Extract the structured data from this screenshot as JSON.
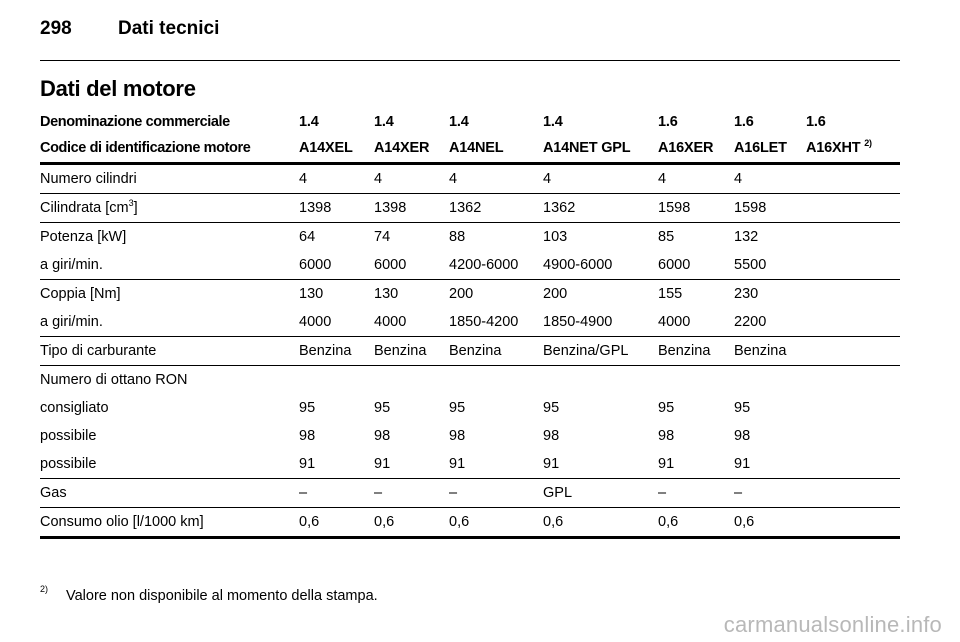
{
  "page": {
    "number": "298",
    "running_title": "Dati tecnici"
  },
  "section_title": "Dati del motore",
  "table": {
    "header_rows": [
      [
        "Denominazione commerciale",
        "1.4",
        "1.4",
        "1.4",
        "1.4",
        "1.6",
        "1.6",
        "1.6"
      ],
      [
        "Codice di identificazione motore",
        "A14XEL",
        "A14XER",
        "A14NEL",
        "A14NET GPL",
        "A16XER",
        "A16LET",
        "A16XHT"
      ]
    ],
    "header_footnote_ref": "2)",
    "rows": [
      {
        "label": "Numero cilindri",
        "values": [
          "4",
          "4",
          "4",
          "4",
          "4",
          "4",
          ""
        ]
      },
      {
        "label": "Cilindrata [cm",
        "label_sup": "3",
        "label_suffix": "]",
        "values": [
          "1398",
          "1398",
          "1362",
          "1362",
          "1598",
          "1598",
          ""
        ]
      },
      {
        "label": "Potenza [kW]",
        "values": [
          "64",
          "74",
          "88",
          "103",
          "85",
          "132",
          ""
        ]
      },
      {
        "label": "a giri/min.",
        "values": [
          "6000",
          "6000",
          "4200-6000",
          "4900-6000",
          "6000",
          "5500",
          ""
        ]
      },
      {
        "label": "Coppia [Nm]",
        "values": [
          "130",
          "130",
          "200",
          "200",
          "155",
          "230",
          ""
        ]
      },
      {
        "label": "a giri/min.",
        "values": [
          "4000",
          "4000",
          "1850-4200",
          "1850-4900",
          "4000",
          "2200",
          ""
        ]
      },
      {
        "label": "Tipo di carburante",
        "values": [
          "Benzina",
          "Benzina",
          "Benzina",
          "Benzina/GPL",
          "Benzina",
          "Benzina",
          ""
        ]
      },
      {
        "label": "Numero di ottano RON",
        "values": [
          "",
          "",
          "",
          "",
          "",
          "",
          ""
        ]
      },
      {
        "label": "consigliato",
        "values": [
          "95",
          "95",
          "95",
          "95",
          "95",
          "95",
          ""
        ]
      },
      {
        "label": "possibile",
        "values": [
          "98",
          "98",
          "98",
          "98",
          "98",
          "98",
          ""
        ]
      },
      {
        "label": "possibile",
        "values": [
          "91",
          "91",
          "91",
          "91",
          "91",
          "91",
          ""
        ]
      },
      {
        "label": "Gas",
        "values": [
          "–",
          "–",
          "–",
          "GPL",
          "–",
          "–",
          ""
        ]
      },
      {
        "label": "Consumo olio [l/1000 km]",
        "values": [
          "0,6",
          "0,6",
          "0,6",
          "0,6",
          "0,6",
          "0,6",
          ""
        ]
      }
    ]
  },
  "footnote": {
    "mark": "2)",
    "text": "Valore non disponibile al momento della stampa."
  },
  "watermark": "carmanualsonline.info"
}
